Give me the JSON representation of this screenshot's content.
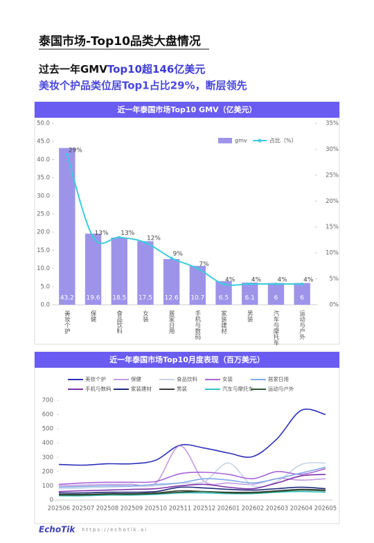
{
  "page": {
    "title": "泰国市场-Top10品类大盘情况",
    "headline": [
      "过去一年GMV",
      "Top10超146亿美元"
    ],
    "subheadline": "美妆个护品类位居Top1占比29%，断层领先",
    "footer_brand": "EchoTik",
    "footer_url": "https://echotik.ai"
  },
  "chart_data": [
    {
      "type": "bar",
      "title": "近一年泰国市场Top10 GMV（亿美元）",
      "categories": [
        "美妆个护",
        "保健",
        "食品饮料",
        "女装",
        "居家日用",
        "手机与数码",
        "家装建材",
        "男装",
        "汽车与摩托车",
        "运动与户外"
      ],
      "series": [
        {
          "name": "gmv",
          "color": "#9d94ea",
          "values": [
            43.2,
            19.6,
            18.5,
            17.5,
            12.6,
            10.7,
            6.5,
            6.1,
            6.0,
            6.0
          ]
        },
        {
          "name": "占比（%）",
          "type": "line",
          "axis": "y2",
          "color": "#3ccbdc",
          "values": [
            29,
            13,
            13,
            12,
            9,
            7,
            4,
            4,
            4,
            4
          ],
          "value_labels": [
            "29%",
            "13%",
            "13%",
            "12%",
            "9%",
            "7%",
            "4%",
            "4%",
            "4%",
            "4%"
          ]
        }
      ],
      "ylim": [
        0,
        50
      ],
      "yticks": [
        {
          "value": 0,
          "label": "0.0"
        },
        {
          "value": 5,
          "label": "5.0"
        },
        {
          "value": 10,
          "label": "10.0"
        },
        {
          "value": 15,
          "label": "15.0"
        },
        {
          "value": 20,
          "label": "20.0"
        },
        {
          "value": 25,
          "label": "25.0"
        },
        {
          "value": 30,
          "label": "30.0"
        },
        {
          "value": 35,
          "label": "35.0"
        },
        {
          "value": 40,
          "label": "40.0"
        },
        {
          "value": 45,
          "label": "45.0"
        },
        {
          "value": 50,
          "label": "50.0"
        }
      ],
      "y2lim": [
        0,
        35
      ],
      "y2ticks": [
        {
          "value": 0,
          "label": "0%"
        },
        {
          "value": 5,
          "label": "5%"
        },
        {
          "value": 10,
          "label": "10%"
        },
        {
          "value": 15,
          "label": "15%"
        },
        {
          "value": 20,
          "label": "20%"
        },
        {
          "value": 25,
          "label": "25%"
        },
        {
          "value": 30,
          "label": "30%"
        },
        {
          "value": 35,
          "label": "35%"
        }
      ],
      "legend": "top-right",
      "grid": false
    },
    {
      "type": "line",
      "title": "近一年泰国市场Top10月度表现（百万美元）",
      "categories": [
        "202506",
        "202507",
        "202508",
        "202509",
        "202510",
        "202511",
        "202512",
        "202601",
        "202602",
        "202603",
        "202604",
        "202605"
      ],
      "series": [
        {
          "name": "美妆个护",
          "color": "#2b2fb8",
          "values": [
            250,
            245,
            255,
            255,
            280,
            385,
            365,
            330,
            305,
            430,
            630,
            600
          ]
        },
        {
          "name": "保健",
          "color": "#c39be0",
          "values": [
            100,
            105,
            110,
            110,
            120,
            380,
            130,
            120,
            110,
            150,
            140,
            150
          ]
        },
        {
          "name": "食品饮料",
          "color": "#c7d3e6",
          "values": [
            80,
            85,
            90,
            95,
            100,
            120,
            130,
            260,
            100,
            130,
            250,
            260
          ]
        },
        {
          "name": "女装",
          "color": "#a864d6",
          "values": [
            110,
            120,
            125,
            125,
            130,
            185,
            195,
            180,
            150,
            200,
            180,
            220
          ]
        },
        {
          "name": "居家日用",
          "color": "#7fa8e8",
          "values": [
            90,
            95,
            100,
            100,
            110,
            120,
            150,
            140,
            120,
            150,
            190,
            230
          ]
        },
        {
          "name": "手机与数码",
          "color": "#7b2fa8",
          "values": [
            60,
            65,
            70,
            75,
            80,
            100,
            110,
            90,
            80,
            120,
            170,
            180
          ]
        },
        {
          "name": "家装建材",
          "color": "#1d2a78",
          "values": [
            50,
            50,
            55,
            55,
            60,
            90,
            85,
            75,
            70,
            80,
            90,
            80
          ]
        },
        {
          "name": "男装",
          "color": "#3a3a3a",
          "values": [
            40,
            40,
            45,
            45,
            50,
            65,
            60,
            55,
            55,
            65,
            75,
            70
          ]
        },
        {
          "name": "汽车与摩托车",
          "color": "#35c2c2",
          "values": [
            30,
            30,
            35,
            35,
            40,
            50,
            50,
            45,
            45,
            55,
            60,
            55
          ]
        },
        {
          "name": "运动与户外",
          "color": "#2e5a36",
          "values": [
            35,
            35,
            40,
            40,
            45,
            55,
            60,
            50,
            50,
            60,
            70,
            65
          ]
        }
      ],
      "ylim": [
        0,
        700
      ],
      "yticks": [
        0,
        100,
        200,
        300,
        400,
        500,
        600,
        700
      ],
      "legend": "top",
      "grid": false
    }
  ]
}
